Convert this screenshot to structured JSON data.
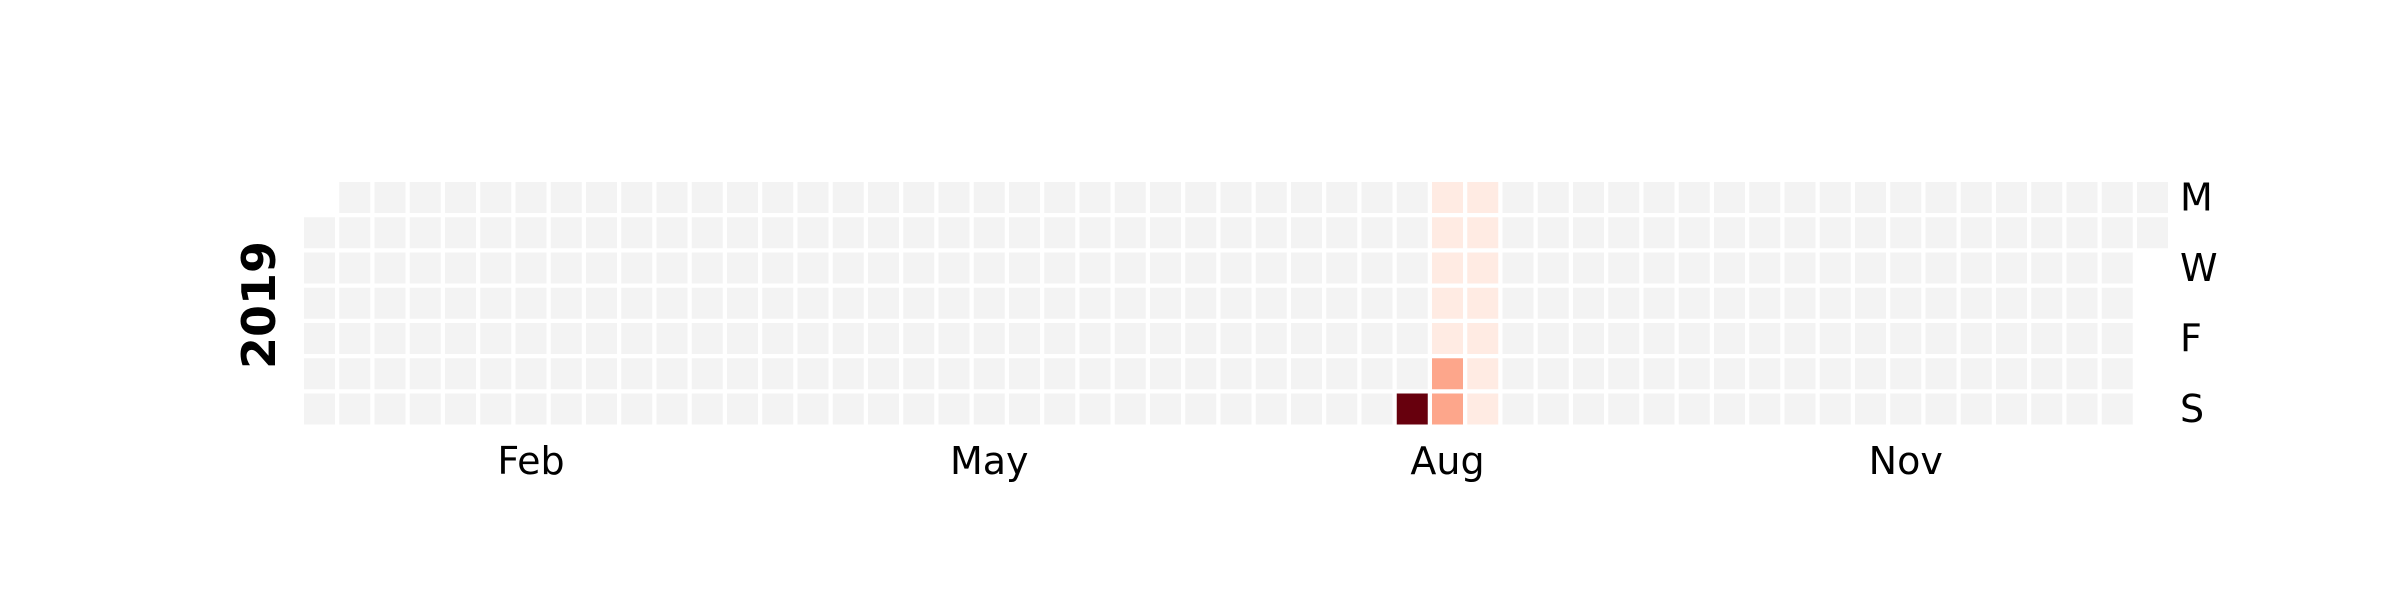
{
  "chart_data": {
    "type": "heatmap",
    "subtype": "calendar",
    "year": "2019",
    "first_day_weekday": "Tue",
    "month_labels": [
      {
        "label": "Feb",
        "week": 6
      },
      {
        "label": "May",
        "week": 19
      },
      {
        "label": "Aug",
        "week": 32
      },
      {
        "label": "Nov",
        "week": 45
      }
    ],
    "day_labels": [
      {
        "label": "M",
        "weekday": "Mon"
      },
      {
        "label": "W",
        "weekday": "Wed"
      },
      {
        "label": "F",
        "weekday": "Fri"
      },
      {
        "label": "S",
        "weekday": "Sun"
      }
    ],
    "values": [
      {
        "date": "2019-08-11",
        "value": 10
      },
      {
        "date": "2019-08-12",
        "value": 0.5
      },
      {
        "date": "2019-08-13",
        "value": 0.5
      },
      {
        "date": "2019-08-14",
        "value": 0.5
      },
      {
        "date": "2019-08-15",
        "value": 0.5
      },
      {
        "date": "2019-08-16",
        "value": 0.5
      },
      {
        "date": "2019-08-17",
        "value": 4
      },
      {
        "date": "2019-08-18",
        "value": 4
      },
      {
        "date": "2019-08-19",
        "value": 0.5
      },
      {
        "date": "2019-08-20",
        "value": 0.5
      },
      {
        "date": "2019-08-21",
        "value": 0.5
      },
      {
        "date": "2019-08-22",
        "value": 0.5
      },
      {
        "date": "2019-08-23",
        "value": 0.5
      },
      {
        "date": "2019-08-24",
        "value": 0.5
      },
      {
        "date": "2019-08-25",
        "value": 0.5
      }
    ],
    "vmax": 10,
    "colormap": "Reds",
    "colors": {
      "empty": "#f3f3f3",
      "scale_low": "#fff5f0",
      "scale_mid": "#fc9272",
      "scale_high": "#67000d",
      "cell_border": "#ffffff"
    },
    "grid": false,
    "legend": "none"
  }
}
